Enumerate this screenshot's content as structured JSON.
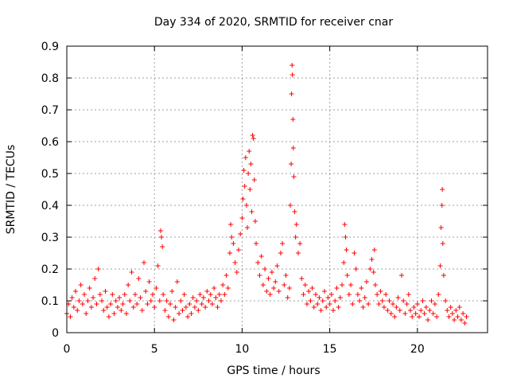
{
  "chart_data": {
    "type": "scatter",
    "title": "Day 334 of 2020, SRMTID for receiver cnar",
    "xlabel": "GPS time / hours",
    "ylabel": "SRMTID / TECUs",
    "xlim": [
      0,
      24
    ],
    "ylim": [
      0,
      0.9
    ],
    "xticks": [
      "0",
      "5",
      "10",
      "15",
      "20"
    ],
    "yticks": [
      "0",
      "0.1",
      "0.2",
      "0.3",
      "0.4",
      "0.5",
      "0.6",
      "0.7",
      "0.8",
      "0.9"
    ],
    "grid": true,
    "marker": "+",
    "color": "#ff0000",
    "series": [
      {
        "name": "SRMTID",
        "points": [
          [
            0.0,
            0.06
          ],
          [
            0.1,
            0.09
          ],
          [
            0.2,
            0.05
          ],
          [
            0.3,
            0.11
          ],
          [
            0.4,
            0.08
          ],
          [
            0.5,
            0.13
          ],
          [
            0.6,
            0.07
          ],
          [
            0.7,
            0.1
          ],
          [
            0.8,
            0.15
          ],
          [
            0.9,
            0.09
          ],
          [
            1.0,
            0.12
          ],
          [
            1.1,
            0.06
          ],
          [
            1.2,
            0.1
          ],
          [
            1.3,
            0.14
          ],
          [
            1.4,
            0.08
          ],
          [
            1.5,
            0.11
          ],
          [
            1.6,
            0.17
          ],
          [
            1.7,
            0.09
          ],
          [
            1.8,
            0.2
          ],
          [
            1.9,
            0.12
          ],
          [
            2.0,
            0.1
          ],
          [
            2.1,
            0.07
          ],
          [
            2.2,
            0.13
          ],
          [
            2.3,
            0.08
          ],
          [
            2.4,
            0.05
          ],
          [
            2.5,
            0.09
          ],
          [
            2.6,
            0.12
          ],
          [
            2.7,
            0.06
          ],
          [
            2.8,
            0.1
          ],
          [
            2.9,
            0.08
          ],
          [
            3.0,
            0.11
          ],
          [
            3.1,
            0.07
          ],
          [
            3.2,
            0.09
          ],
          [
            3.3,
            0.12
          ],
          [
            3.4,
            0.06
          ],
          [
            3.5,
            0.15
          ],
          [
            3.6,
            0.1
          ],
          [
            3.7,
            0.19
          ],
          [
            3.8,
            0.08
          ],
          [
            3.9,
            0.12
          ],
          [
            4.0,
            0.09
          ],
          [
            4.1,
            0.17
          ],
          [
            4.2,
            0.11
          ],
          [
            4.3,
            0.07
          ],
          [
            4.4,
            0.22
          ],
          [
            4.5,
            0.13
          ],
          [
            4.6,
            0.09
          ],
          [
            4.7,
            0.16
          ],
          [
            4.8,
            0.1
          ],
          [
            4.9,
            0.12
          ],
          [
            5.0,
            0.08
          ],
          [
            5.1,
            0.14
          ],
          [
            5.2,
            0.21
          ],
          [
            5.3,
            0.1
          ],
          [
            5.35,
            0.32
          ],
          [
            5.4,
            0.3
          ],
          [
            5.45,
            0.27
          ],
          [
            5.5,
            0.12
          ],
          [
            5.6,
            0.07
          ],
          [
            5.7,
            0.1
          ],
          [
            5.8,
            0.05
          ],
          [
            5.9,
            0.09
          ],
          [
            6.0,
            0.13
          ],
          [
            6.1,
            0.04
          ],
          [
            6.2,
            0.08
          ],
          [
            6.3,
            0.16
          ],
          [
            6.4,
            0.06
          ],
          [
            6.5,
            0.1
          ],
          [
            6.6,
            0.07
          ],
          [
            6.7,
            0.12
          ],
          [
            6.8,
            0.08
          ],
          [
            6.9,
            0.05
          ],
          [
            7.0,
            0.09
          ],
          [
            7.1,
            0.06
          ],
          [
            7.2,
            0.11
          ],
          [
            7.3,
            0.08
          ],
          [
            7.4,
            0.1
          ],
          [
            7.5,
            0.07
          ],
          [
            7.6,
            0.12
          ],
          [
            7.7,
            0.09
          ],
          [
            7.8,
            0.11
          ],
          [
            7.9,
            0.08
          ],
          [
            8.0,
            0.13
          ],
          [
            8.1,
            0.1
          ],
          [
            8.2,
            0.12
          ],
          [
            8.3,
            0.09
          ],
          [
            8.4,
            0.14
          ],
          [
            8.5,
            0.11
          ],
          [
            8.6,
            0.08
          ],
          [
            8.7,
            0.12
          ],
          [
            8.8,
            0.1
          ],
          [
            8.9,
            0.15
          ],
          [
            9.0,
            0.12
          ],
          [
            9.1,
            0.18
          ],
          [
            9.2,
            0.14
          ],
          [
            9.3,
            0.25
          ],
          [
            9.35,
            0.34
          ],
          [
            9.4,
            0.3
          ],
          [
            9.5,
            0.28
          ],
          [
            9.6,
            0.22
          ],
          [
            9.7,
            0.19
          ],
          [
            9.8,
            0.26
          ],
          [
            9.9,
            0.31
          ],
          [
            10.0,
            0.36
          ],
          [
            10.05,
            0.42
          ],
          [
            10.1,
            0.51
          ],
          [
            10.15,
            0.46
          ],
          [
            10.2,
            0.55
          ],
          [
            10.25,
            0.4
          ],
          [
            10.3,
            0.33
          ],
          [
            10.35,
            0.5
          ],
          [
            10.4,
            0.57
          ],
          [
            10.45,
            0.45
          ],
          [
            10.5,
            0.53
          ],
          [
            10.55,
            0.38
          ],
          [
            10.6,
            0.62
          ],
          [
            10.65,
            0.61
          ],
          [
            10.7,
            0.48
          ],
          [
            10.75,
            0.35
          ],
          [
            10.8,
            0.28
          ],
          [
            10.9,
            0.22
          ],
          [
            11.0,
            0.18
          ],
          [
            11.1,
            0.24
          ],
          [
            11.2,
            0.15
          ],
          [
            11.3,
            0.2
          ],
          [
            11.4,
            0.13
          ],
          [
            11.5,
            0.17
          ],
          [
            11.6,
            0.12
          ],
          [
            11.7,
            0.19
          ],
          [
            11.8,
            0.14
          ],
          [
            11.9,
            0.16
          ],
          [
            12.0,
            0.21
          ],
          [
            12.1,
            0.13
          ],
          [
            12.2,
            0.25
          ],
          [
            12.3,
            0.28
          ],
          [
            12.4,
            0.15
          ],
          [
            12.5,
            0.18
          ],
          [
            12.6,
            0.11
          ],
          [
            12.7,
            0.14
          ],
          [
            12.75,
            0.4
          ],
          [
            12.8,
            0.53
          ],
          [
            12.82,
            0.75
          ],
          [
            12.85,
            0.84
          ],
          [
            12.87,
            0.81
          ],
          [
            12.9,
            0.67
          ],
          [
            12.92,
            0.58
          ],
          [
            12.95,
            0.49
          ],
          [
            13.0,
            0.38
          ],
          [
            13.05,
            0.3
          ],
          [
            13.1,
            0.34
          ],
          [
            13.2,
            0.25
          ],
          [
            13.3,
            0.28
          ],
          [
            13.4,
            0.17
          ],
          [
            13.5,
            0.12
          ],
          [
            13.6,
            0.15
          ],
          [
            13.7,
            0.09
          ],
          [
            13.8,
            0.13
          ],
          [
            13.9,
            0.1
          ],
          [
            14.0,
            0.14
          ],
          [
            14.1,
            0.08
          ],
          [
            14.2,
            0.12
          ],
          [
            14.3,
            0.09
          ],
          [
            14.4,
            0.11
          ],
          [
            14.5,
            0.07
          ],
          [
            14.6,
            0.1
          ],
          [
            14.7,
            0.13
          ],
          [
            14.8,
            0.08
          ],
          [
            14.9,
            0.11
          ],
          [
            15.0,
            0.09
          ],
          [
            15.1,
            0.12
          ],
          [
            15.2,
            0.07
          ],
          [
            15.3,
            0.1
          ],
          [
            15.4,
            0.14
          ],
          [
            15.5,
            0.08
          ],
          [
            15.6,
            0.11
          ],
          [
            15.7,
            0.15
          ],
          [
            15.8,
            0.22
          ],
          [
            15.85,
            0.34
          ],
          [
            15.9,
            0.3
          ],
          [
            15.95,
            0.26
          ],
          [
            16.0,
            0.18
          ],
          [
            16.1,
            0.12
          ],
          [
            16.2,
            0.15
          ],
          [
            16.3,
            0.09
          ],
          [
            16.4,
            0.25
          ],
          [
            16.5,
            0.2
          ],
          [
            16.6,
            0.12
          ],
          [
            16.7,
            0.1
          ],
          [
            16.8,
            0.14
          ],
          [
            16.9,
            0.08
          ],
          [
            17.0,
            0.11
          ],
          [
            17.1,
            0.16
          ],
          [
            17.2,
            0.09
          ],
          [
            17.3,
            0.2
          ],
          [
            17.4,
            0.23
          ],
          [
            17.5,
            0.19
          ],
          [
            17.55,
            0.26
          ],
          [
            17.6,
            0.15
          ],
          [
            17.7,
            0.12
          ],
          [
            17.8,
            0.09
          ],
          [
            17.9,
            0.13
          ],
          [
            18.0,
            0.1
          ],
          [
            18.1,
            0.08
          ],
          [
            18.2,
            0.12
          ],
          [
            18.3,
            0.07
          ],
          [
            18.4,
            0.1
          ],
          [
            18.5,
            0.06
          ],
          [
            18.6,
            0.09
          ],
          [
            18.7,
            0.05
          ],
          [
            18.8,
            0.08
          ],
          [
            18.9,
            0.11
          ],
          [
            19.0,
            0.07
          ],
          [
            19.1,
            0.18
          ],
          [
            19.2,
            0.1
          ],
          [
            19.3,
            0.06
          ],
          [
            19.4,
            0.09
          ],
          [
            19.5,
            0.12
          ],
          [
            19.6,
            0.07
          ],
          [
            19.7,
            0.05
          ],
          [
            19.8,
            0.08
          ],
          [
            19.9,
            0.06
          ],
          [
            20.0,
            0.09
          ],
          [
            20.1,
            0.05
          ],
          [
            20.2,
            0.07
          ],
          [
            20.3,
            0.1
          ],
          [
            20.4,
            0.06
          ],
          [
            20.5,
            0.08
          ],
          [
            20.6,
            0.04
          ],
          [
            20.7,
            0.07
          ],
          [
            20.8,
            0.1
          ],
          [
            20.9,
            0.06
          ],
          [
            21.0,
            0.09
          ],
          [
            21.1,
            0.05
          ],
          [
            21.2,
            0.12
          ],
          [
            21.3,
            0.21
          ],
          [
            21.35,
            0.33
          ],
          [
            21.4,
            0.4
          ],
          [
            21.42,
            0.45
          ],
          [
            21.45,
            0.28
          ],
          [
            21.5,
            0.18
          ],
          [
            21.6,
            0.1
          ],
          [
            21.7,
            0.07
          ],
          [
            21.8,
            0.05
          ],
          [
            21.9,
            0.08
          ],
          [
            22.0,
            0.06
          ],
          [
            22.1,
            0.04
          ],
          [
            22.2,
            0.07
          ],
          [
            22.3,
            0.05
          ],
          [
            22.4,
            0.08
          ],
          [
            22.5,
            0.04
          ],
          [
            22.6,
            0.06
          ],
          [
            22.7,
            0.03
          ],
          [
            22.8,
            0.05
          ]
        ]
      }
    ]
  }
}
